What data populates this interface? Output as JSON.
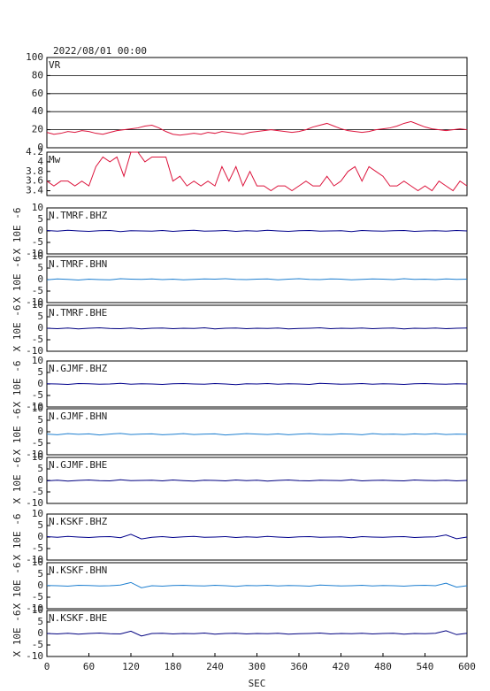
{
  "title": "2022/08/01 00:00",
  "chart_data": [
    {
      "type": "line",
      "label": "VR",
      "color": "#dc143c",
      "xlim": [
        0,
        600
      ],
      "ylim": [
        0,
        100
      ],
      "yticks": [
        0,
        20,
        40,
        60,
        80,
        100
      ],
      "grid": true,
      "x": [
        0,
        10,
        20,
        30,
        40,
        50,
        60,
        70,
        80,
        90,
        100,
        110,
        120,
        130,
        140,
        150,
        160,
        170,
        180,
        190,
        200,
        210,
        220,
        230,
        240,
        250,
        260,
        270,
        280,
        290,
        300,
        310,
        320,
        330,
        340,
        350,
        360,
        370,
        380,
        390,
        400,
        410,
        420,
        430,
        440,
        450,
        460,
        470,
        480,
        490,
        500,
        510,
        520,
        530,
        540,
        550,
        560,
        570,
        580,
        590,
        600
      ],
      "values": [
        17,
        15,
        16,
        18,
        17,
        19,
        18,
        16,
        15,
        17,
        19,
        20,
        21,
        22,
        24,
        25,
        22,
        18,
        15,
        14,
        15,
        16,
        15,
        17,
        16,
        18,
        17,
        16,
        15,
        17,
        18,
        19,
        20,
        19,
        18,
        17,
        18,
        20,
        23,
        25,
        27,
        24,
        21,
        19,
        18,
        17,
        18,
        20,
        21,
        22,
        24,
        27,
        29,
        26,
        23,
        21,
        20,
        19,
        20,
        21,
        20
      ]
    },
    {
      "type": "line",
      "label": "Mw",
      "color": "#dc143c",
      "xlim": [
        0,
        600
      ],
      "ylim": [
        3.3,
        4.2
      ],
      "yticks": [
        3.4,
        3.6,
        3.8,
        4.0,
        4.2
      ],
      "x": [
        0,
        10,
        20,
        30,
        40,
        50,
        60,
        70,
        80,
        90,
        100,
        110,
        120,
        130,
        140,
        150,
        160,
        170,
        180,
        190,
        200,
        210,
        220,
        230,
        240,
        250,
        260,
        270,
        280,
        290,
        300,
        310,
        320,
        330,
        340,
        350,
        360,
        370,
        380,
        390,
        400,
        410,
        420,
        430,
        440,
        450,
        460,
        470,
        480,
        490,
        500,
        510,
        520,
        530,
        540,
        550,
        560,
        570,
        580,
        590,
        600
      ],
      "values": [
        3.6,
        3.5,
        3.6,
        3.6,
        3.5,
        3.6,
        3.5,
        3.9,
        4.1,
        4.0,
        4.1,
        3.7,
        4.2,
        4.2,
        4.0,
        4.1,
        4.1,
        4.1,
        3.6,
        3.7,
        3.5,
        3.6,
        3.5,
        3.6,
        3.5,
        3.9,
        3.6,
        3.9,
        3.5,
        3.8,
        3.5,
        3.5,
        3.4,
        3.5,
        3.5,
        3.4,
        3.5,
        3.6,
        3.5,
        3.5,
        3.7,
        3.5,
        3.6,
        3.8,
        3.9,
        3.6,
        3.9,
        3.8,
        3.7,
        3.5,
        3.5,
        3.6,
        3.5,
        3.4,
        3.5,
        3.4,
        3.6,
        3.5,
        3.4,
        3.6,
        3.5
      ]
    },
    {
      "type": "line",
      "label": "N.TMRF.BHZ",
      "ylabel": "X 10E -6",
      "color": "#00008b",
      "xlim": [
        0,
        600
      ],
      "ylim": [
        -10,
        10
      ],
      "yticks": [
        10,
        5,
        0,
        -5,
        -10
      ],
      "x": [
        0,
        15,
        30,
        45,
        60,
        75,
        90,
        105,
        120,
        135,
        150,
        165,
        180,
        195,
        210,
        225,
        240,
        255,
        270,
        285,
        300,
        315,
        330,
        345,
        360,
        375,
        390,
        405,
        420,
        435,
        450,
        465,
        480,
        495,
        510,
        525,
        540,
        555,
        570,
        585,
        600
      ],
      "values": [
        0.2,
        -0.1,
        0.3,
        0,
        -0.2,
        0.1,
        0.2,
        -0.3,
        0.1,
        0,
        -0.1,
        0.2,
        -0.2,
        0.1,
        0.3,
        -0.1,
        0,
        0.2,
        -0.2,
        0.1,
        -0.1,
        0.3,
        0,
        -0.2,
        0.1,
        0.2,
        -0.1,
        0,
        0.1,
        -0.3,
        0.2,
        0,
        -0.1,
        0.1,
        0.2,
        -0.2,
        0,
        0.1,
        -0.1,
        0.2,
        0
      ]
    },
    {
      "type": "line",
      "label": "N.TMRF.BHN",
      "ylabel": "X 10E -6",
      "color": "#1e7fd0",
      "xlim": [
        0,
        600
      ],
      "ylim": [
        -10,
        10
      ],
      "yticks": [
        10,
        5,
        0,
        -5,
        -10
      ],
      "x": [
        0,
        15,
        30,
        45,
        60,
        75,
        90,
        105,
        120,
        135,
        150,
        165,
        180,
        195,
        210,
        225,
        240,
        255,
        270,
        285,
        300,
        315,
        330,
        345,
        360,
        375,
        390,
        405,
        420,
        435,
        450,
        465,
        480,
        495,
        510,
        525,
        540,
        555,
        570,
        585,
        600
      ],
      "values": [
        -0.1,
        0.3,
        0.1,
        -0.2,
        0.2,
        0,
        -0.1,
        0.4,
        0.2,
        0.1,
        0.3,
        0,
        0.2,
        -0.1,
        0.1,
        0.3,
        0.2,
        0.4,
        0.1,
        0,
        0.2,
        0.3,
        -0.1,
        0.2,
        0.4,
        0.1,
        0,
        0.3,
        0.2,
        -0.1,
        0.1,
        0.3,
        0.2,
        0,
        0.4,
        0.1,
        0.2,
        0,
        0.3,
        0.1,
        0.2
      ]
    },
    {
      "type": "line",
      "label": "N.TMRF.BHE",
      "ylabel": "X 10E -6",
      "color": "#000080",
      "xlim": [
        0,
        600
      ],
      "ylim": [
        -10,
        10
      ],
      "yticks": [
        10,
        5,
        0,
        -5,
        -10
      ],
      "x": [
        0,
        15,
        30,
        45,
        60,
        75,
        90,
        105,
        120,
        135,
        150,
        165,
        180,
        195,
        210,
        225,
        240,
        255,
        270,
        285,
        300,
        315,
        330,
        345,
        360,
        375,
        390,
        405,
        420,
        435,
        450,
        465,
        480,
        495,
        510,
        525,
        540,
        555,
        570,
        585,
        600
      ],
      "values": [
        0,
        -0.2,
        0.1,
        -0.3,
        0,
        0.2,
        -0.1,
        -0.2,
        0.1,
        -0.3,
        0,
        0.1,
        -0.2,
        0,
        -0.1,
        0.2,
        -0.3,
        0,
        0.1,
        -0.2,
        0,
        -0.1,
        0.1,
        -0.3,
        -0.1,
        0,
        0.2,
        -0.2,
        0,
        -0.1,
        0.1,
        -0.2,
        0,
        0.1,
        -0.3,
        0,
        -0.1,
        0.1,
        -0.2,
        0,
        0.1
      ]
    },
    {
      "type": "line",
      "label": "N.GJMF.BHZ",
      "ylabel": "X 10E -6",
      "color": "#00008b",
      "xlim": [
        0,
        600
      ],
      "ylim": [
        -10,
        10
      ],
      "yticks": [
        10,
        5,
        0,
        -5,
        -10
      ],
      "x": [
        0,
        15,
        30,
        45,
        60,
        75,
        90,
        105,
        120,
        135,
        150,
        165,
        180,
        195,
        210,
        225,
        240,
        255,
        270,
        285,
        300,
        315,
        330,
        345,
        360,
        375,
        390,
        405,
        420,
        435,
        450,
        465,
        480,
        495,
        510,
        525,
        540,
        555,
        570,
        585,
        600
      ],
      "values": [
        0.1,
        0,
        -0.2,
        0.2,
        0.1,
        -0.1,
        0,
        0.3,
        -0.1,
        0.1,
        0,
        -0.2,
        0.1,
        0.2,
        0,
        -0.1,
        0.2,
        0,
        -0.3,
        0.1,
        0,
        0.2,
        -0.1,
        0.1,
        0,
        -0.2,
        0.3,
        0.1,
        -0.1,
        0,
        0.2,
        -0.1,
        0.1,
        0,
        -0.2,
        0.1,
        0.2,
        0,
        -0.1,
        0.1,
        0
      ]
    },
    {
      "type": "line",
      "label": "N.GJMF.BHN",
      "ylabel": "X 10E -6",
      "color": "#1e7fd0",
      "xlim": [
        0,
        600
      ],
      "ylim": [
        -10,
        10
      ],
      "yticks": [
        10,
        5,
        0,
        -5,
        -10
      ],
      "x": [
        0,
        15,
        30,
        45,
        60,
        75,
        90,
        105,
        120,
        135,
        150,
        165,
        180,
        195,
        210,
        225,
        240,
        255,
        270,
        285,
        300,
        315,
        330,
        345,
        360,
        375,
        390,
        405,
        420,
        435,
        450,
        465,
        480,
        495,
        510,
        525,
        540,
        555,
        570,
        585,
        600
      ],
      "values": [
        -1.0,
        -1.3,
        -0.8,
        -1.1,
        -0.9,
        -1.4,
        -1.0,
        -0.7,
        -1.2,
        -1.0,
        -0.9,
        -1.3,
        -1.1,
        -0.8,
        -1.2,
        -1.0,
        -0.9,
        -1.4,
        -1.1,
        -0.8,
        -1.0,
        -1.2,
        -0.9,
        -1.3,
        -1.0,
        -0.8,
        -1.1,
        -1.2,
        -0.9,
        -1.0,
        -1.3,
        -0.8,
        -1.1,
        -1.0,
        -1.2,
        -0.9,
        -1.1,
        -0.8,
        -1.2,
        -1.0,
        -1.1
      ]
    },
    {
      "type": "line",
      "label": "N.GJMF.BHE",
      "ylabel": "X 10E -6",
      "color": "#000080",
      "xlim": [
        0,
        600
      ],
      "ylim": [
        -10,
        10
      ],
      "yticks": [
        10,
        5,
        0,
        -5,
        -10
      ],
      "x": [
        0,
        15,
        30,
        45,
        60,
        75,
        90,
        105,
        120,
        135,
        150,
        165,
        180,
        195,
        210,
        225,
        240,
        255,
        270,
        285,
        300,
        315,
        330,
        345,
        360,
        375,
        390,
        405,
        420,
        435,
        450,
        465,
        480,
        495,
        510,
        525,
        540,
        555,
        570,
        585,
        600
      ],
      "values": [
        -0.2,
        0.1,
        -0.3,
        0,
        0.2,
        -0.1,
        -0.2,
        0.3,
        -0.1,
        0,
        0.1,
        -0.2,
        0.2,
        -0.1,
        -0.3,
        0.1,
        0,
        -0.2,
        0.2,
        -0.1,
        0.1,
        -0.3,
        0,
        0.2,
        -0.1,
        -0.2,
        0.1,
        0,
        -0.1,
        0.3,
        -0.2,
        0,
        0.1,
        -0.1,
        -0.2,
        0.2,
        0,
        -0.1,
        0.1,
        -0.2,
        0
      ]
    },
    {
      "type": "line",
      "label": "N.KSKF.BHZ",
      "ylabel": "X 10E -6",
      "color": "#00008b",
      "xlim": [
        0,
        600
      ],
      "ylim": [
        -10,
        10
      ],
      "yticks": [
        10,
        5,
        0,
        -5,
        -10
      ],
      "x": [
        0,
        15,
        30,
        45,
        60,
        75,
        90,
        105,
        120,
        135,
        150,
        165,
        180,
        195,
        210,
        225,
        240,
        255,
        270,
        285,
        300,
        315,
        330,
        345,
        360,
        375,
        390,
        405,
        420,
        435,
        450,
        465,
        480,
        495,
        510,
        525,
        540,
        555,
        570,
        585,
        600
      ],
      "values": [
        0.2,
        -0.1,
        0.3,
        0,
        -0.2,
        0.1,
        0.2,
        -0.3,
        1.2,
        -0.8,
        -0.1,
        0.2,
        -0.2,
        0.1,
        0.3,
        -0.1,
        0,
        0.2,
        -0.2,
        0.1,
        -0.1,
        0.3,
        0,
        -0.2,
        0.1,
        0.2,
        -0.1,
        0,
        0.1,
        -0.3,
        0.2,
        0,
        -0.1,
        0.1,
        0.2,
        -0.2,
        0,
        0.1,
        0.9,
        -0.7,
        0
      ]
    },
    {
      "type": "line",
      "label": "N.KSKF.BHN",
      "ylabel": "X 10E -6",
      "color": "#1e7fd0",
      "xlim": [
        0,
        600
      ],
      "ylim": [
        -10,
        10
      ],
      "yticks": [
        10,
        5,
        0,
        -5,
        -10
      ],
      "x": [
        0,
        15,
        30,
        45,
        60,
        75,
        90,
        105,
        120,
        135,
        150,
        165,
        180,
        195,
        210,
        225,
        240,
        255,
        270,
        285,
        300,
        315,
        330,
        345,
        360,
        375,
        390,
        405,
        420,
        435,
        450,
        465,
        480,
        495,
        510,
        525,
        540,
        555,
        570,
        585,
        600
      ],
      "values": [
        0.1,
        0,
        -0.2,
        0.2,
        0.1,
        -0.1,
        0,
        0.3,
        1.4,
        -0.9,
        0,
        -0.2,
        0.1,
        0.2,
        0,
        -0.1,
        0.2,
        0,
        -0.3,
        0.1,
        0,
        0.2,
        -0.1,
        0.1,
        0,
        -0.2,
        0.3,
        0.1,
        -0.1,
        0,
        0.2,
        -0.1,
        0.1,
        0,
        -0.2,
        0.1,
        0.2,
        0,
        1.1,
        -0.6,
        0
      ]
    },
    {
      "type": "line",
      "label": "N.KSKF.BHE",
      "ylabel": "X 10E -6",
      "color": "#000080",
      "xlim": [
        0,
        600
      ],
      "ylim": [
        -10,
        10
      ],
      "yticks": [
        10,
        5,
        0,
        -5,
        -10
      ],
      "xticks": [
        0,
        60,
        120,
        180,
        240,
        300,
        360,
        420,
        480,
        540,
        600
      ],
      "xlabel": "SEC",
      "x": [
        0,
        15,
        30,
        45,
        60,
        75,
        90,
        105,
        120,
        135,
        150,
        165,
        180,
        195,
        210,
        225,
        240,
        255,
        270,
        285,
        300,
        315,
        330,
        345,
        360,
        375,
        390,
        405,
        420,
        435,
        450,
        465,
        480,
        495,
        510,
        525,
        540,
        555,
        570,
        585,
        600
      ],
      "values": [
        0,
        -0.2,
        0.1,
        -0.3,
        0,
        0.2,
        -0.1,
        -0.2,
        1.0,
        -1.1,
        0,
        0.1,
        -0.2,
        0,
        -0.1,
        0.2,
        -0.3,
        0,
        0.1,
        -0.2,
        0,
        -0.1,
        0.1,
        -0.3,
        -0.1,
        0,
        0.2,
        -0.2,
        0,
        -0.1,
        0.1,
        -0.2,
        0,
        0.1,
        -0.3,
        0,
        -0.1,
        0.1,
        1.2,
        -0.5,
        0.1
      ]
    }
  ]
}
